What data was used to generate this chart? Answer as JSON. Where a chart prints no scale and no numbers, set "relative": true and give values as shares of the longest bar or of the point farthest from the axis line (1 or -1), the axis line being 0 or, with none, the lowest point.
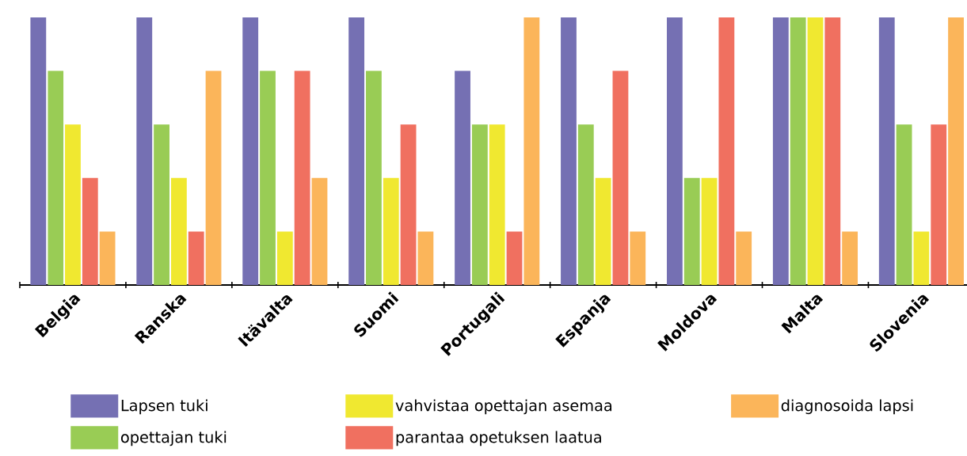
{
  "chart_data": {
    "type": "bar",
    "relative": true,
    "legend": "bottom",
    "categories": [
      "Belgia",
      "Ranska",
      "Itävalta",
      "Suomi",
      "Portugali",
      "Espanja",
      "Moldova",
      "Malta",
      "Slovenia"
    ],
    "series": [
      {
        "name": "Lapsen tuki",
        "color": "#7570b3",
        "values": [
          1,
          1,
          1,
          1,
          0.8,
          1,
          1,
          1,
          1
        ]
      },
      {
        "name": "opettajan tuki",
        "color": "#99cc55",
        "values": [
          0.8,
          0.6,
          0.8,
          0.8,
          0.6,
          0.6,
          0.4,
          1,
          0.6
        ]
      },
      {
        "name": "vahvistaa opettajan asemaa",
        "color": "#f0e830",
        "values": [
          0.6,
          0.4,
          0.2,
          0.4,
          0.6,
          0.4,
          0.4,
          1,
          0.2
        ]
      },
      {
        "name": "parantaa opetuksen laatua",
        "color": "#f07060",
        "values": [
          0.4,
          0.2,
          0.8,
          0.6,
          0.2,
          0.8,
          1,
          1,
          0.6
        ]
      },
      {
        "name": "diagnosoida lapsi",
        "color": "#fbb55a",
        "values": [
          0.2,
          0.8,
          0.4,
          0.2,
          1,
          0.2,
          0.2,
          0.2,
          1
        ]
      }
    ]
  }
}
